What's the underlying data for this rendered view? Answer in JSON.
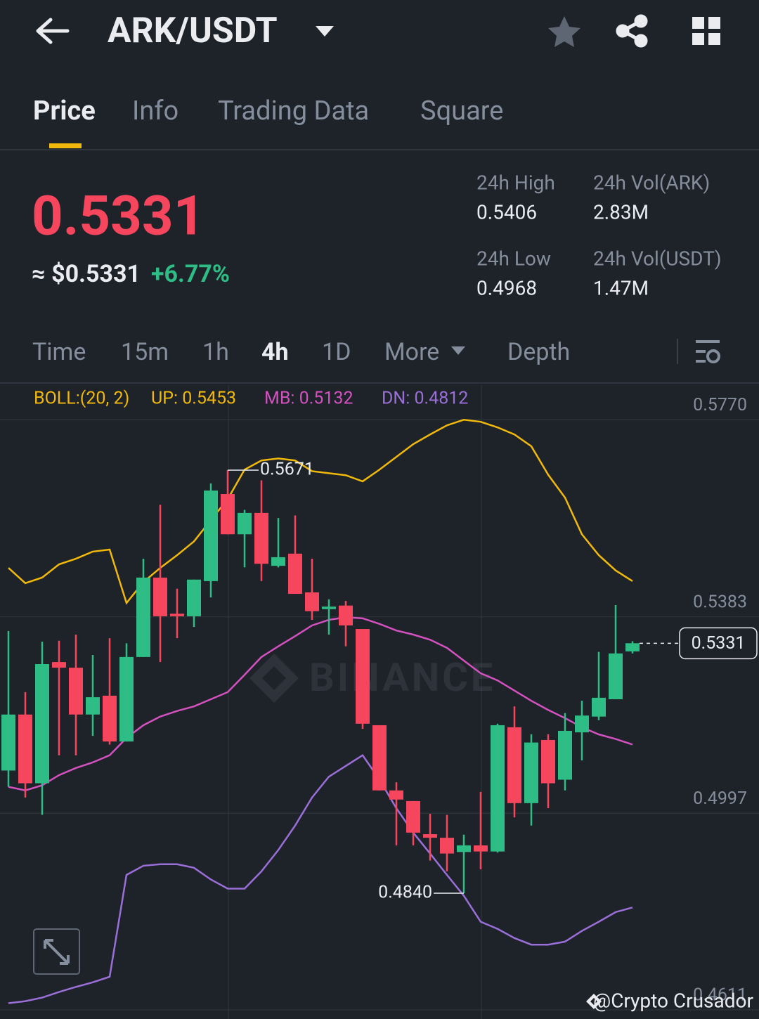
{
  "header": {
    "title": "ARK/USDT"
  },
  "tabs": [
    "Price",
    "Info",
    "Trading Data",
    "Square"
  ],
  "price": {
    "last": "0.5331",
    "usd": "≈ $0.5331",
    "change": "+6.77%"
  },
  "stats": [
    {
      "label": "24h High",
      "value": "0.5406"
    },
    {
      "label": "24h Vol(ARK)",
      "value": "2.83M"
    },
    {
      "label": "24h Low",
      "value": "0.4968"
    },
    {
      "label": "24h Vol(USDT)",
      "value": "1.47M"
    }
  ],
  "intervals": [
    "Time",
    "15m",
    "1h",
    "4h",
    "1D",
    "More",
    "Depth"
  ],
  "watermark": "BINANCE",
  "credit": "@Crypto Crusador",
  "chart_data": {
    "type": "candlestick",
    "indicator": "BOLL:(20, 2)",
    "up_color": "#2ebd85",
    "down_color": "#f6465d",
    "ylim": [
      0.4593,
      0.5838
    ],
    "yticks": [
      {
        "value": 0.577,
        "label": "0.5770"
      },
      {
        "value": 0.5383,
        "label": "0.5383"
      },
      {
        "value": 0.4997,
        "label": "0.4997"
      },
      {
        "value": 0.4611,
        "label": "0.4611"
      }
    ],
    "grid": true,
    "open": [
      0.5081,
      0.5191,
      0.5056,
      0.5294,
      0.5283,
      0.5191,
      0.5228,
      0.5138,
      0.5304,
      0.546,
      0.5389,
      0.5384,
      0.5453,
      0.5624,
      0.5545,
      0.5587,
      0.5483,
      0.5507,
      0.5431,
      0.5398,
      0.5405,
      0.5359,
      0.517,
      0.5042,
      0.5021,
      0.4956,
      0.4949,
      0.4921,
      0.4934,
      0.4922,
      0.5166,
      0.5017,
      0.5141,
      0.5063,
      0.5156,
      0.5187,
      0.5221,
      0.5315
    ],
    "high": [
      0.5355,
      0.5235,
      0.5334,
      0.5336,
      0.5348,
      0.5308,
      0.5341,
      0.5331,
      0.5497,
      0.5603,
      0.5438,
      0.5456,
      0.5645,
      0.5671,
      0.5593,
      0.5651,
      0.5577,
      0.5582,
      0.5497,
      0.5417,
      0.5414,
      0.5359,
      0.517,
      0.5058,
      0.5021,
      0.4996,
      0.4994,
      0.4955,
      0.5039,
      0.5173,
      0.5207,
      0.5152,
      0.5152,
      0.5194,
      0.5218,
      0.5314,
      0.5406,
      0.5335
    ],
    "low": [
      0.5049,
      0.5028,
      0.4994,
      0.5111,
      0.5111,
      0.5149,
      0.5132,
      0.5138,
      0.5304,
      0.5294,
      0.5341,
      0.5363,
      0.5421,
      0.5545,
      0.548,
      0.5453,
      0.548,
      0.5428,
      0.5377,
      0.5348,
      0.5325,
      0.5163,
      0.5042,
      0.4934,
      0.4934,
      0.4904,
      0.4883,
      0.484,
      0.4887,
      0.492,
      0.4989,
      0.4973,
      0.5007,
      0.5042,
      0.5101,
      0.518,
      0.5221,
      0.5311
    ],
    "close": [
      0.5191,
      0.5056,
      0.529,
      0.5283,
      0.5191,
      0.5225,
      0.5138,
      0.5304,
      0.546,
      0.5384,
      0.5384,
      0.5456,
      0.5631,
      0.5545,
      0.5587,
      0.5487,
      0.55,
      0.5428,
      0.5394,
      0.5403,
      0.5366,
      0.5173,
      0.5042,
      0.5024,
      0.4959,
      0.4949,
      0.4918,
      0.4934,
      0.4922,
      0.517,
      0.5017,
      0.5136,
      0.5056,
      0.5159,
      0.5189,
      0.5224,
      0.5311,
      0.5331
    ],
    "series": [
      {
        "name": "UP: 0.5453",
        "color": "#f0b90b",
        "values": [
          0.5479,
          0.5449,
          0.546,
          0.5486,
          0.5497,
          0.5511,
          0.5515,
          0.541,
          0.5451,
          0.5479,
          0.5504,
          0.5531,
          0.5573,
          0.5614,
          0.5672,
          0.569,
          0.5694,
          0.569,
          0.5669,
          0.5665,
          0.5661,
          0.5649,
          0.5672,
          0.5697,
          0.5722,
          0.5741,
          0.5759,
          0.577,
          0.5766,
          0.5755,
          0.5741,
          0.5718,
          0.5662,
          0.5617,
          0.5545,
          0.5504,
          0.5474,
          0.5453
        ]
      },
      {
        "name": "MB: 0.5132",
        "color": "#d452c0",
        "values": [
          0.5049,
          0.5042,
          0.5052,
          0.5072,
          0.5086,
          0.5097,
          0.5111,
          0.5145,
          0.517,
          0.5187,
          0.5198,
          0.5207,
          0.5221,
          0.5235,
          0.5269,
          0.5304,
          0.5325,
          0.5345,
          0.5366,
          0.5377,
          0.5382,
          0.538,
          0.5369,
          0.5356,
          0.5348,
          0.5338,
          0.5322,
          0.5297,
          0.5272,
          0.5258,
          0.5238,
          0.5218,
          0.52,
          0.5184,
          0.5166,
          0.5152,
          0.5143,
          0.5132
        ]
      },
      {
        "name": "DN: 0.4812",
        "color": "#9a6fd8",
        "values": [
          0.4624,
          0.4628,
          0.4635,
          0.4646,
          0.4656,
          0.4665,
          0.4676,
          0.4876,
          0.4894,
          0.4897,
          0.4897,
          0.489,
          0.4867,
          0.4849,
          0.4849,
          0.4883,
          0.4925,
          0.4973,
          0.5028,
          0.5069,
          0.509,
          0.5111,
          0.5063,
          0.5007,
          0.4959,
          0.4918,
          0.4876,
          0.4835,
          0.4784,
          0.477,
          0.4752,
          0.4739,
          0.4739,
          0.4745,
          0.4766,
          0.4784,
          0.4803,
          0.4812
        ]
      }
    ],
    "annotations": [
      "0.5671",
      "0.4840"
    ],
    "price_label": "0.5331"
  }
}
